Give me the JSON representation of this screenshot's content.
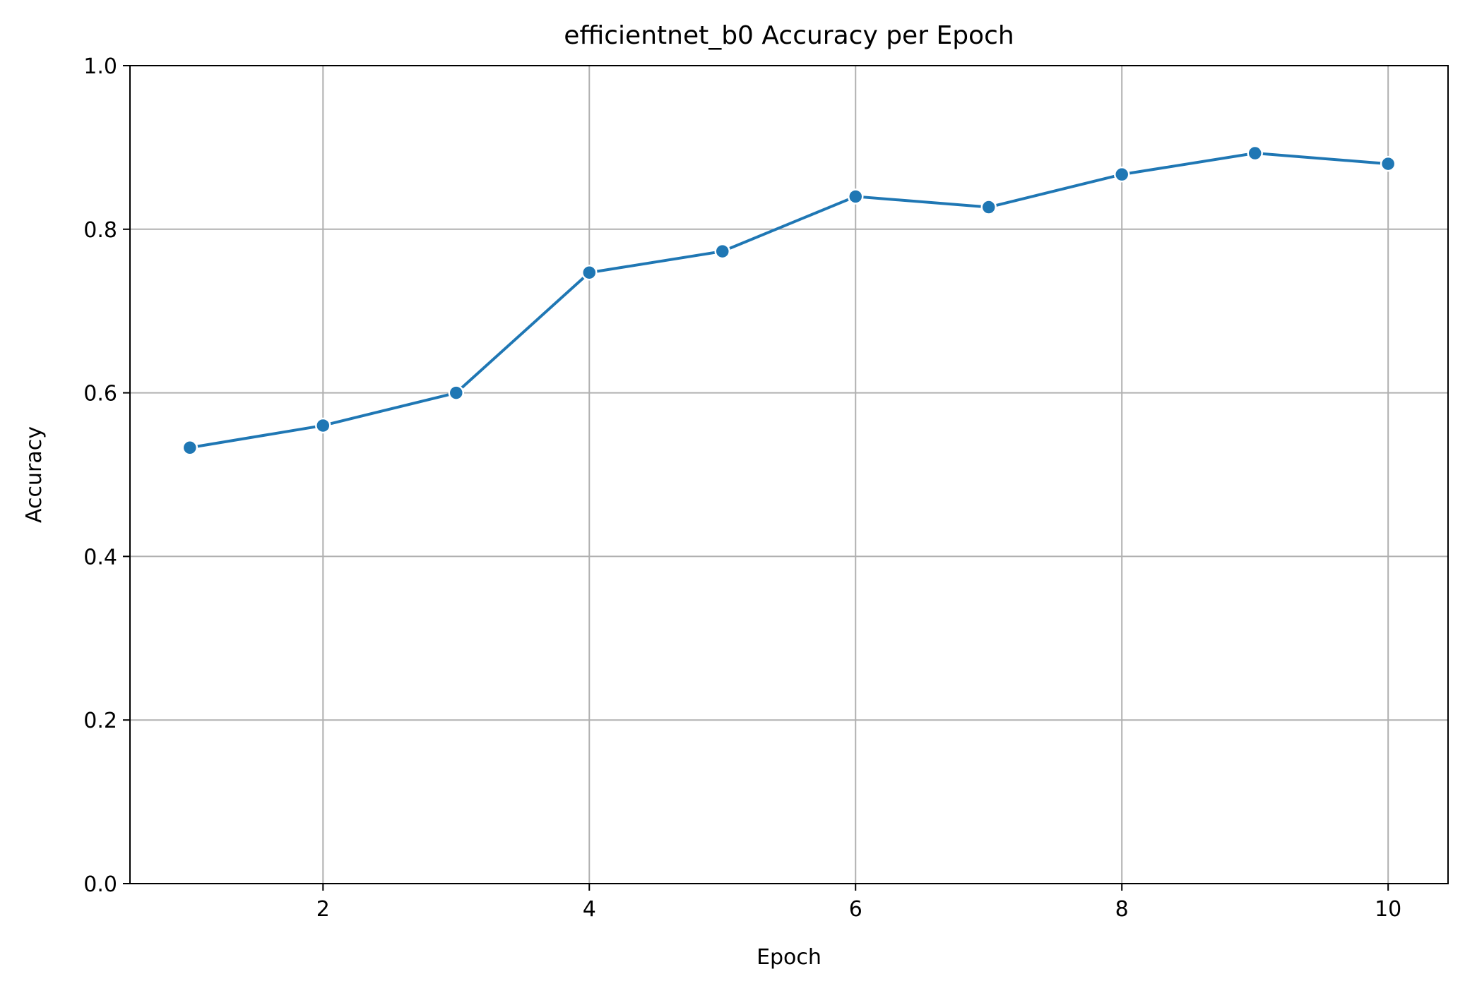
{
  "chart_data": {
    "type": "line",
    "title": "efficientnet_b0 Accuracy per Epoch",
    "xlabel": "Epoch",
    "ylabel": "Accuracy",
    "x": [
      1,
      2,
      3,
      4,
      5,
      6,
      7,
      8,
      9,
      10
    ],
    "series": [
      {
        "values": [
          0.533,
          0.56,
          0.6,
          0.747,
          0.773,
          0.84,
          0.827,
          0.867,
          0.893,
          0.88
        ],
        "color": "#1f77b4",
        "marker": "circle"
      }
    ],
    "xlim": [
      0.55,
      10.45
    ],
    "ylim": [
      0.0,
      1.0
    ],
    "xticks": [
      2,
      4,
      6,
      8,
      10
    ],
    "xtick_labels": [
      "2",
      "4",
      "6",
      "8",
      "10"
    ],
    "yticks": [
      0.0,
      0.2,
      0.4,
      0.6,
      0.8,
      1.0
    ],
    "ytick_labels": [
      "0.0",
      "0.2",
      "0.4",
      "0.6",
      "0.8",
      "1.0"
    ],
    "grid": true,
    "legend": false
  }
}
